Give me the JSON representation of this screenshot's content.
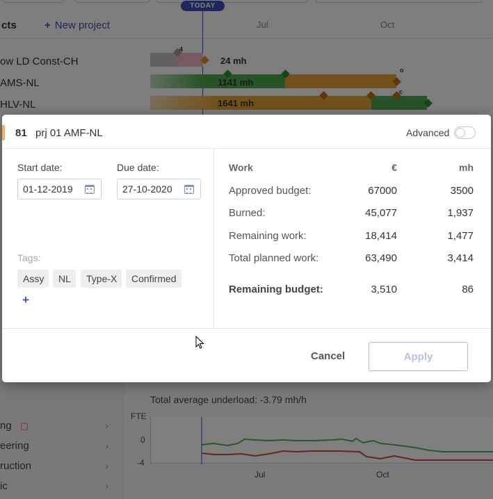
{
  "background": {
    "today_label": "TODAY",
    "projects_label": "cts",
    "new_project_label": "New project",
    "months": [
      "Jul",
      "Oct"
    ],
    "projects": [
      {
        "name": "ow LD Const-CH",
        "hours": "24 mh",
        "marker": "4"
      },
      {
        "name": "AMS-NL",
        "hours": "1141 mh",
        "marker": "o"
      },
      {
        "name": "HLV-NL",
        "hours": "1641 mh",
        "marker": "c"
      }
    ],
    "underload_text": "Total average underload: -3.79 mh/h",
    "chart_y_label": "FTE",
    "chart_y_ticks": [
      "0",
      "-4"
    ],
    "chart_x_ticks": [
      "Jul",
      "Oct"
    ],
    "nav_items": [
      "ng",
      "eering",
      "ruction",
      "ic"
    ],
    "colors": {
      "green": "#4ea64e",
      "orange": "#e7a33a",
      "pink": "#e8a1a9",
      "grey": "#b8b8b8",
      "today": "#3d4fb8"
    }
  },
  "modal": {
    "project_id": "81",
    "project_name": "prj 01 AMF-NL",
    "advanced_label": "Advanced",
    "advanced_enabled": false,
    "start_date_label": "Start date:",
    "start_date_value": "01-12-2019",
    "due_date_label": "Due date:",
    "due_date_value": "27-10-2020",
    "tags_label": "Tags:",
    "tags": [
      "Assy",
      "NL",
      "Type-X",
      "Confirmed"
    ],
    "add_tag_label": "+",
    "table": {
      "headers": {
        "label": "Work",
        "eur": "€",
        "mh": "mh"
      },
      "rows": [
        {
          "label": "Approved budget:",
          "eur": "67000",
          "mh": "3500"
        },
        {
          "label": "Burned:",
          "eur": "45,077",
          "mh": "1,937"
        },
        {
          "label": "Remaining work:",
          "eur": "18,414",
          "mh": "1,477"
        },
        {
          "label": "Total planned work:",
          "eur": "63,490",
          "mh": "3,414"
        }
      ],
      "total": {
        "label": "Remaining budget:",
        "eur": "3,510",
        "mh": "86"
      }
    },
    "cancel_label": "Cancel",
    "apply_label": "Apply"
  }
}
